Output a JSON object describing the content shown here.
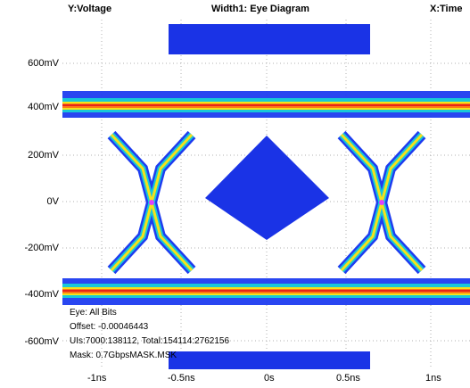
{
  "header": {
    "y_label": "Y:Voltage",
    "title": "Width1: Eye Diagram",
    "x_label": "X:Time"
  },
  "y_axis": {
    "ticks": [
      "600mV",
      "400mV",
      "200mV",
      "0V",
      "-200mV",
      "-400mV",
      "-600mV"
    ]
  },
  "x_axis": {
    "ticks": [
      "-1ns",
      "-0.5ns",
      "0s",
      "0.5ns",
      "1ns"
    ]
  },
  "info": {
    "line1": "Eye: All Bits",
    "line2": "Offset: -0.00046443",
    "line3": "UIs:7000:138112, Total:154114:2762156",
    "line4": "Mask: 0.7GbpsMASK.MSK"
  },
  "colors": {
    "mask": "#1a33e6",
    "trace_edge": "#1e3cf0",
    "trace_mid": "#18c8d8",
    "trace_hot": "#f5e21a",
    "trace_core": "#ff7a14",
    "trace_peak": "#e6261a",
    "grid": "#b0b0b0"
  }
}
